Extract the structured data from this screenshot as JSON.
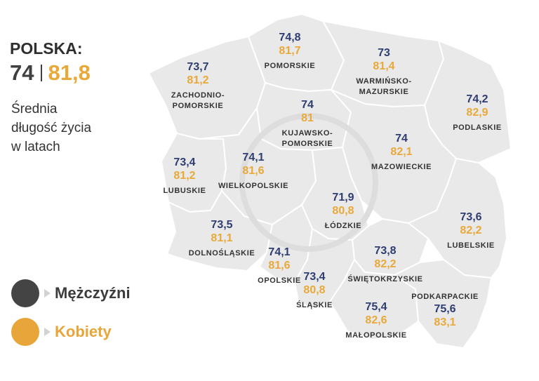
{
  "header": {
    "title": "POLSKA:",
    "men": "74",
    "women": "81,8"
  },
  "description": [
    "Średnia",
    "długość życia",
    "w latach"
  ],
  "legend": {
    "men": "Mężczyźni",
    "women": "Kobiety"
  },
  "colors": {
    "men": "#2e3d72",
    "women": "#e9a93a",
    "map_fill": "#e9e9e9",
    "border": "#ffffff",
    "men_dot": "#444444"
  },
  "regions": [
    {
      "id": "pomorskie",
      "name": [
        "POMORSKIE"
      ],
      "men": "74,8",
      "women": "81,7",
      "name_first": false
    },
    {
      "id": "warminsko-mazurskie",
      "name": [
        "WARMIŃSKO-",
        "MAZURSKIE"
      ],
      "men": "73",
      "women": "81,4",
      "name_first": false
    },
    {
      "id": "zachodniopomorskie",
      "name": [
        "ZACHODNIO-",
        "POMORSKIE"
      ],
      "men": "73,7",
      "women": "81,2",
      "name_first": false
    },
    {
      "id": "podlaskie",
      "name": [
        "PODLASKIE"
      ],
      "men": "74,2",
      "women": "82,9",
      "name_first": false
    },
    {
      "id": "kujawsko-pomorskie",
      "name": [
        "KUJAWSKO-",
        "POMORSKIE"
      ],
      "men": "74",
      "women": "81",
      "name_first": false
    },
    {
      "id": "mazowieckie",
      "name": [
        "MAZOWIECKIE"
      ],
      "men": "74",
      "women": "82,1",
      "name_first": false
    },
    {
      "id": "lubuskie",
      "name": [
        "LUBUSKIE"
      ],
      "men": "73,4",
      "women": "81,2",
      "name_first": false
    },
    {
      "id": "wielkopolskie",
      "name": [
        "WIELKOPOLSKIE"
      ],
      "men": "74,1",
      "women": "81,6",
      "name_first": false
    },
    {
      "id": "lodzkie",
      "name": [
        "ŁÓDZKIE"
      ],
      "men": "71,9",
      "women": "80,8",
      "name_first": false
    },
    {
      "id": "lubelskie",
      "name": [
        "LUBELSKIE"
      ],
      "men": "73,6",
      "women": "82,2",
      "name_first": false
    },
    {
      "id": "dolnoslaskie",
      "name": [
        "DOLNOŚLĄSKIE"
      ],
      "men": "73,5",
      "women": "81,1",
      "name_first": false
    },
    {
      "id": "opolskie",
      "name": [
        "OPOLSKIE"
      ],
      "men": "74,1",
      "women": "81,6",
      "name_first": false
    },
    {
      "id": "swietokrzyskie",
      "name": [
        "ŚWIĘTOKRZYSKIE"
      ],
      "men": "73,8",
      "women": "82,2",
      "name_first": false
    },
    {
      "id": "slaskie",
      "name": [
        "ŚLĄSKIE"
      ],
      "men": "73,4",
      "women": "80,8",
      "name_first": false
    },
    {
      "id": "malopolskie",
      "name": [
        "MAŁOPOLSKIE"
      ],
      "men": "75,4",
      "women": "82,6",
      "name_first": false
    },
    {
      "id": "podkarpackie",
      "name": [
        "PODKARPACKIE"
      ],
      "men": "75,6",
      "women": "83,1",
      "name_first": true
    }
  ]
}
